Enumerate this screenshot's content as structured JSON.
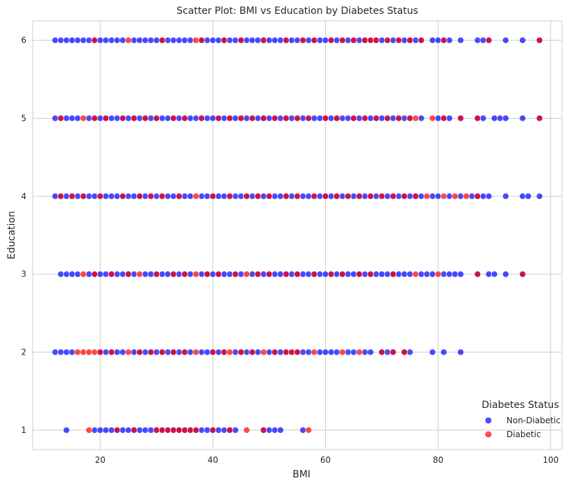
{
  "chart_data": {
    "type": "scatter",
    "title": "Scatter Plot: BMI vs Education by Diabetes Status",
    "xlabel": "BMI",
    "ylabel": "Education",
    "xlim": [
      8,
      102
    ],
    "ylim": [
      0.75,
      6.25
    ],
    "xticks": [
      20,
      40,
      60,
      80,
      100
    ],
    "yticks": [
      1,
      2,
      3,
      4,
      5,
      6
    ],
    "grid": true,
    "legend": {
      "title": "Diabetes Status",
      "placement": "lower-right",
      "entries": [
        "Non-Diabetic",
        "Diabetic"
      ]
    },
    "series": [
      {
        "name": "Non-Diabetic",
        "color": "#0000ff",
        "points": {
          "6": [
            12,
            13,
            14,
            15,
            16,
            17,
            18,
            19,
            20,
            21,
            22,
            23,
            24,
            26,
            27,
            28,
            29,
            30,
            31,
            32,
            33,
            34,
            35,
            36,
            38,
            39,
            40,
            41,
            42,
            43,
            44,
            45,
            46,
            47,
            48,
            49,
            50,
            51,
            52,
            53,
            54,
            55,
            56,
            57,
            58,
            59,
            60,
            61,
            62,
            63,
            64,
            65,
            66,
            67,
            68,
            69,
            70,
            71,
            72,
            73,
            74,
            75,
            76,
            77,
            79,
            80,
            81,
            82,
            84,
            87,
            88,
            89,
            92,
            95,
            98
          ],
          "5": [
            12,
            13,
            14,
            15,
            16,
            18,
            19,
            20,
            21,
            22,
            23,
            24,
            25,
            26,
            27,
            28,
            29,
            30,
            31,
            32,
            33,
            34,
            35,
            36,
            37,
            38,
            39,
            40,
            41,
            42,
            43,
            44,
            45,
            46,
            47,
            48,
            49,
            50,
            51,
            52,
            53,
            54,
            55,
            56,
            57,
            58,
            59,
            60,
            61,
            62,
            63,
            64,
            65,
            66,
            67,
            68,
            69,
            70,
            71,
            72,
            73,
            74,
            75,
            77,
            80,
            81,
            82,
            84,
            87,
            88,
            90,
            91,
            92,
            95,
            98
          ],
          "4": [
            12,
            13,
            14,
            15,
            16,
            17,
            18,
            19,
            20,
            21,
            22,
            23,
            24,
            25,
            26,
            27,
            28,
            29,
            30,
            31,
            32,
            33,
            34,
            35,
            36,
            38,
            39,
            40,
            41,
            42,
            43,
            44,
            45,
            46,
            47,
            48,
            49,
            50,
            51,
            52,
            53,
            54,
            55,
            56,
            57,
            58,
            59,
            60,
            61,
            62,
            63,
            64,
            65,
            66,
            67,
            68,
            69,
            70,
            71,
            72,
            73,
            74,
            75,
            76,
            77,
            79,
            80,
            82,
            84,
            86,
            87,
            88,
            89,
            92,
            95,
            96,
            98
          ],
          "3": [
            13,
            14,
            15,
            16,
            18,
            19,
            20,
            21,
            22,
            23,
            24,
            25,
            26,
            28,
            29,
            30,
            31,
            32,
            33,
            34,
            35,
            36,
            38,
            39,
            40,
            41,
            42,
            43,
            44,
            45,
            47,
            48,
            49,
            50,
            51,
            52,
            53,
            54,
            55,
            56,
            57,
            58,
            59,
            60,
            61,
            62,
            63,
            64,
            65,
            66,
            67,
            68,
            69,
            70,
            71,
            72,
            73,
            74,
            75,
            77,
            78,
            79,
            81,
            82,
            83,
            84,
            87,
            89,
            90,
            92,
            95
          ],
          "2": [
            12,
            13,
            14,
            15,
            20,
            21,
            22,
            23,
            24,
            26,
            27,
            28,
            29,
            30,
            31,
            32,
            33,
            34,
            35,
            36,
            38,
            39,
            40,
            41,
            42,
            44,
            45,
            46,
            47,
            48,
            50,
            51,
            52,
            53,
            54,
            55,
            56,
            57,
            59,
            60,
            61,
            62,
            64,
            65,
            67,
            68,
            70,
            71,
            72,
            74,
            75,
            79,
            81,
            84
          ],
          "1": [
            14,
            19,
            20,
            21,
            22,
            23,
            24,
            25,
            26,
            27,
            28,
            29,
            30,
            31,
            32,
            33,
            34,
            35,
            36,
            37,
            38,
            39,
            40,
            41,
            42,
            43,
            44,
            49,
            50,
            51,
            52,
            56
          ]
        }
      },
      {
        "name": "Diabetic",
        "color": "#ff0000",
        "points": {
          "6": [
            19,
            25,
            31,
            37,
            38,
            42,
            45,
            49,
            53,
            56,
            58,
            61,
            63,
            65,
            67,
            68,
            69,
            71,
            73,
            75,
            77,
            81,
            89,
            98
          ],
          "5": [
            13,
            17,
            19,
            21,
            24,
            26,
            28,
            30,
            33,
            35,
            38,
            41,
            43,
            45,
            47,
            49,
            51,
            53,
            55,
            57,
            60,
            62,
            65,
            67,
            69,
            71,
            73,
            75,
            76,
            79,
            81,
            84,
            87,
            98
          ],
          "4": [
            13,
            15,
            17,
            20,
            24,
            27,
            29,
            31,
            34,
            37,
            40,
            43,
            46,
            48,
            50,
            53,
            55,
            58,
            60,
            62,
            64,
            66,
            68,
            70,
            72,
            74,
            76,
            78,
            81,
            83,
            85,
            87
          ],
          "3": [
            17,
            19,
            22,
            25,
            27,
            30,
            33,
            35,
            37,
            39,
            41,
            44,
            46,
            48,
            50,
            53,
            55,
            58,
            61,
            63,
            66,
            68,
            72,
            76,
            80,
            87,
            95
          ],
          "2": [
            16,
            17,
            18,
            19,
            20,
            22,
            25,
            27,
            29,
            31,
            33,
            35,
            37,
            40,
            42,
            43,
            45,
            47,
            49,
            51,
            53,
            54,
            55,
            58,
            63,
            66,
            70,
            72,
            74
          ],
          "1": [
            18,
            23,
            26,
            30,
            31,
            32,
            33,
            34,
            35,
            36,
            37,
            40,
            43,
            46,
            49,
            57
          ]
        }
      }
    ]
  }
}
